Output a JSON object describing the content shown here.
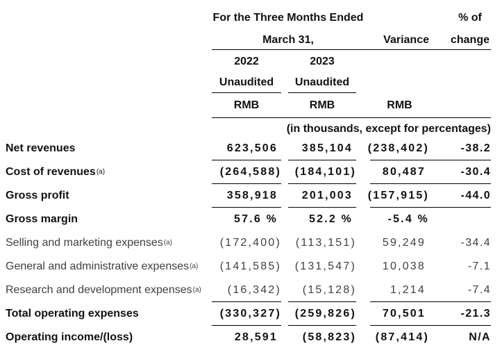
{
  "header": {
    "period_line1": "For the Three Months Ended",
    "period_line2": "March 31,",
    "variance_label": "Variance",
    "pct_change_line1": "% of",
    "pct_change_line2": "change",
    "year_2022": "2022",
    "year_2023": "2023",
    "unaudited_2022": "Unaudited",
    "unaudited_2023": "Unaudited",
    "rmb_2022": "RMB",
    "rmb_2023": "RMB",
    "rmb_variance": "RMB",
    "units_note": "(in thousands, except for percentages)"
  },
  "rows": [
    {
      "label": "Net revenues",
      "sup": "",
      "y2022": "623,506",
      "y2023": "385,104",
      "variance": "(238,402)",
      "pct": "-38.2"
    },
    {
      "label": "Cost of revenues",
      "sup": "(a)",
      "y2022": "(264,588)",
      "y2023": "(184,101)",
      "variance": "80,487",
      "pct": "-30.4"
    },
    {
      "label": "Gross profit",
      "sup": "",
      "y2022": "358,918",
      "y2023": "201,003",
      "variance": "(157,915)",
      "pct": "-44.0"
    },
    {
      "label": "Gross margin",
      "sup": "",
      "y2022": "57.6 %",
      "y2023": "52.2 %",
      "variance": "-5.4 %",
      "pct": ""
    },
    {
      "label": "Selling and marketing expenses",
      "sup": "(a)",
      "y2022": "(172,400)",
      "y2023": "(113,151)",
      "variance": "59,249",
      "pct": "-34.4"
    },
    {
      "label": "General and administrative expenses",
      "sup": "(a)",
      "y2022": "(141,585)",
      "y2023": "(131,547)",
      "variance": "10,038",
      "pct": "-7.1"
    },
    {
      "label": "Research and development expenses",
      "sup": "(a)",
      "y2022": "(16,342)",
      "y2023": "(15,128)",
      "variance": "1,214",
      "pct": "-7.4"
    },
    {
      "label": "Total operating expenses",
      "sup": "",
      "y2022": "(330,327)",
      "y2023": "(259,826)",
      "variance": "70,501",
      "pct": "-21.3"
    },
    {
      "label": "Operating income/(loss)",
      "sup": "",
      "y2022": "28,591",
      "y2023": "(58,823)",
      "variance": "(87,414)",
      "pct": "N/A"
    }
  ]
}
